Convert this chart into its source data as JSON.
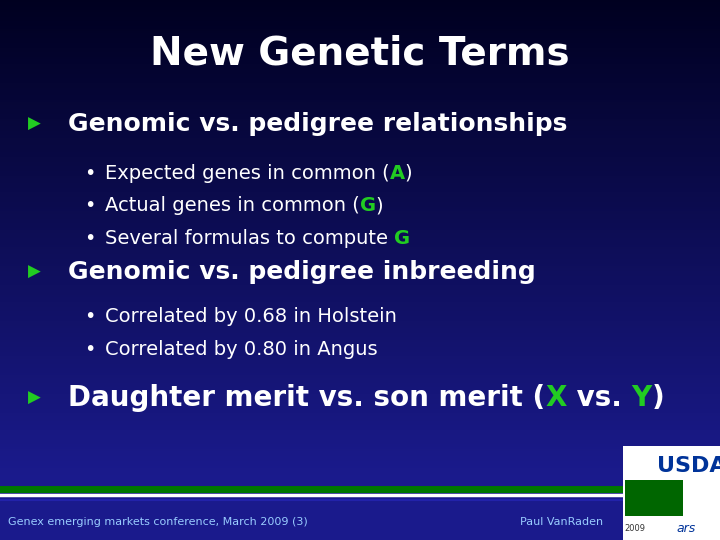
{
  "title": "New Genetic Terms",
  "title_color": "#ffffff",
  "title_fontsize": 28,
  "title_fontweight": "bold",
  "bg_top": "#000020",
  "bg_bottom": "#1a1a8c",
  "main_text_color": "#ffffff",
  "green_color": "#22cc22",
  "bullet1_header": "Genomic vs. pedigree relationships",
  "bullet1_subs_plain": [
    "Expected genes in common (",
    "Actual genes in common (",
    "Several formulas to compute "
  ],
  "bullet1_subs_green": [
    "A",
    "G",
    "G"
  ],
  "bullet1_subs_after": [
    ")",
    ")",
    ""
  ],
  "bullet2_header": "Genomic vs. pedigree inbreeding",
  "bullet2_subs": [
    "Correlated by 0.68 in Holstein",
    "Correlated by 0.80 in Angus"
  ],
  "bullet3_before": "Daughter merit vs. son merit (",
  "bullet3_x": "X",
  "bullet3_mid": " vs. ",
  "bullet3_y": "Y",
  "bullet3_after": ")",
  "footer_left": "Genex emerging markets conference, March 2009 (3)",
  "footer_right": "Paul VanRaden",
  "footer_text_color": "#99ccff",
  "footer_bg": "#2222aa",
  "stripe_green": "#007700",
  "stripe_white": "#ffffff",
  "stripe_blue": "#2222aa",
  "arrow_color": "#22cc22",
  "header_fontsize": 18,
  "sub_fontsize": 14,
  "bullet3_fontsize": 20,
  "footer_fontsize": 8
}
